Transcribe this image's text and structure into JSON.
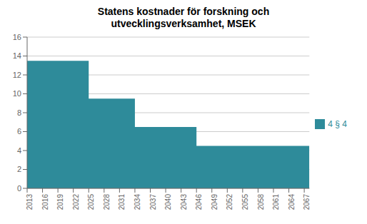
{
  "chart_data": {
    "type": "area",
    "title": "Statens kostnader för forskning och\nutvecklingsverksamhet, MSEK",
    "line_style": "step",
    "x": [
      2013,
      2025,
      2034,
      2046,
      2068
    ],
    "series": [
      {
        "name": "4 § 4",
        "color": "#2e8b9a",
        "values": [
          13.5,
          9.5,
          6.5,
          4.5,
          4.5
        ]
      }
    ],
    "xlim": [
      2013,
      2068
    ],
    "xticks": [
      2013,
      2016,
      2019,
      2022,
      2025,
      2028,
      2031,
      2034,
      2037,
      2040,
      2043,
      2046,
      2049,
      2052,
      2055,
      2058,
      2061,
      2064,
      2067
    ],
    "ylim": [
      0,
      16
    ],
    "yticks": [
      0,
      2,
      4,
      6,
      8,
      10,
      12,
      14,
      16
    ],
    "grid": true,
    "legend": "right"
  }
}
